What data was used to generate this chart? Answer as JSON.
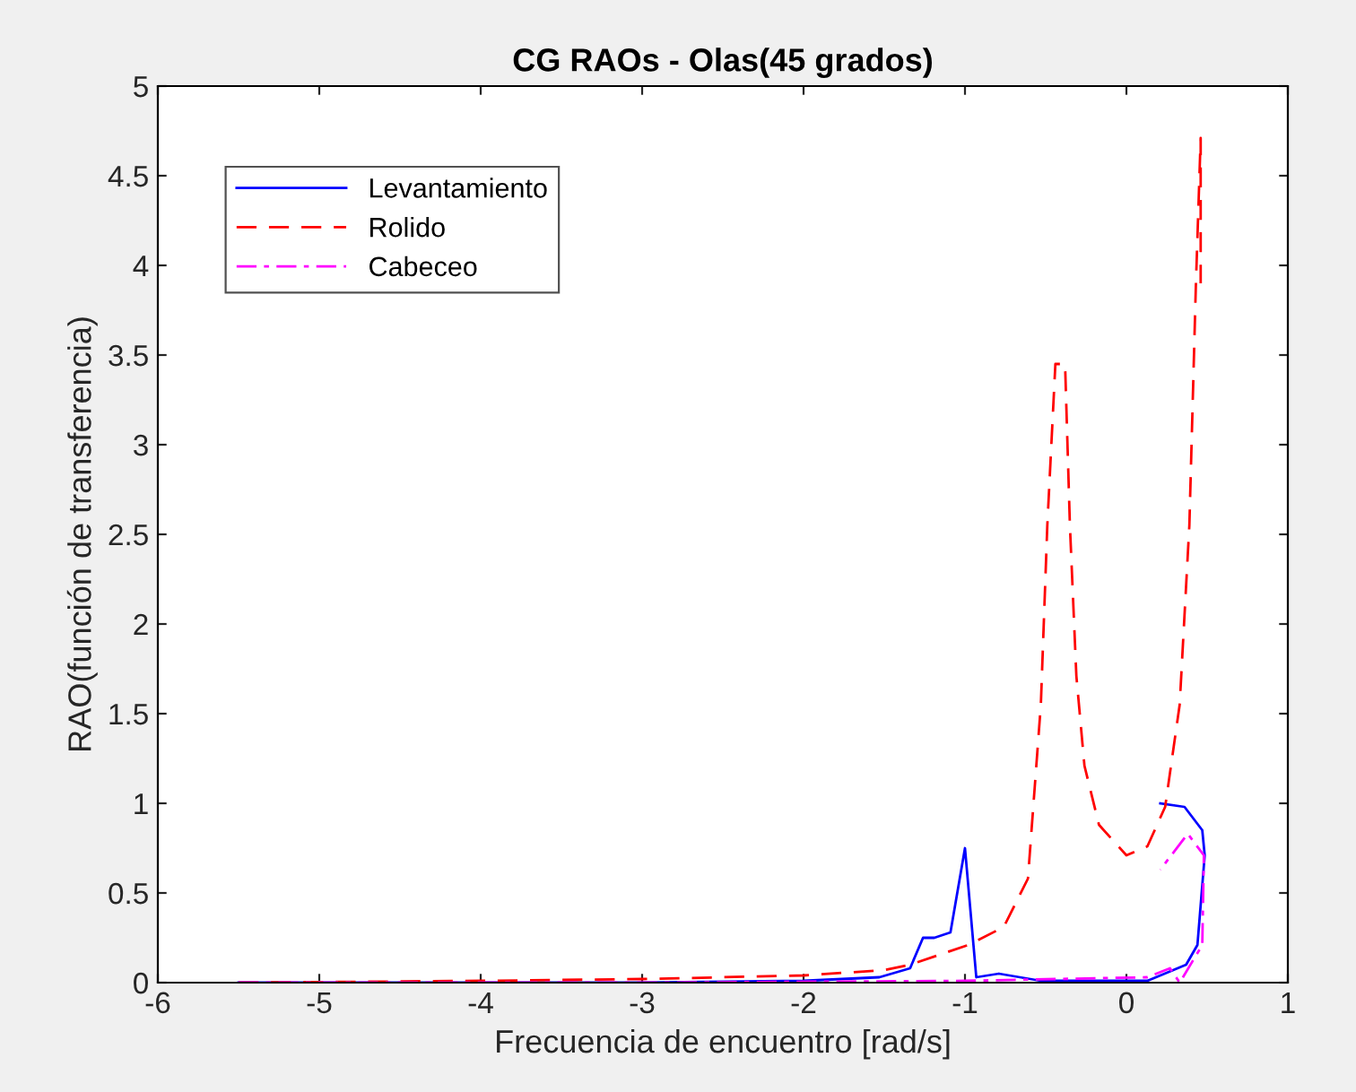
{
  "chart_data": {
    "type": "line",
    "title": "CG RAOs - Olas(45 grados)",
    "xlabel": "Frecuencia de encuentro [rad/s]",
    "ylabel": "RAO(función de transferencia)",
    "xlim": [
      -6,
      1
    ],
    "xticks": [
      -6,
      -5,
      -4,
      -3,
      -2,
      -1,
      0,
      1
    ],
    "ylim": [
      0,
      5
    ],
    "yticks": [
      0,
      0.5,
      1,
      1.5,
      2,
      2.5,
      3,
      3.5,
      4,
      4.5,
      5
    ],
    "grid": false,
    "legend": "top left",
    "series": [
      {
        "name": "Levantamiento",
        "color": "#0000ff",
        "line_style": "solid",
        "x": [
          -5.5,
          -4,
          -3,
          -2,
          -1.53,
          -1.34,
          -1.26,
          -1.19,
          -1.09,
          -1.0,
          -0.93,
          -0.79,
          -0.53,
          0.13,
          0.37,
          0.44,
          0.485,
          0.47,
          0.36,
          0.21
        ],
        "values": [
          0,
          0,
          0,
          0.01,
          0.03,
          0.08,
          0.25,
          0.25,
          0.28,
          0.75,
          0.03,
          0.05,
          0.01,
          0.01,
          0.1,
          0.21,
          0.71,
          0.85,
          0.98,
          1.0
        ]
      },
      {
        "name": "Rolido",
        "color": "#ff0000",
        "line_style": "dashed",
        "x": [
          -5.5,
          -4,
          -3,
          -2,
          -1.5,
          -1.34,
          -0.98,
          -0.76,
          -0.61,
          -0.53,
          -0.49,
          -0.44,
          -0.38,
          -0.35,
          -0.31,
          -0.26,
          -0.17,
          0.0,
          0.13,
          0.24,
          0.33,
          0.39,
          0.43,
          0.46,
          0.46
        ],
        "values": [
          0,
          0.01,
          0.02,
          0.04,
          0.07,
          0.1,
          0.21,
          0.31,
          0.58,
          1.55,
          2.55,
          3.45,
          3.45,
          2.55,
          1.71,
          1.21,
          0.88,
          0.71,
          0.76,
          0.98,
          1.55,
          2.55,
          3.88,
          4.71,
          3.9
        ]
      },
      {
        "name": "Cabeceo",
        "color": "#ff00ff",
        "line_style": "dashdot",
        "x": [
          -5.5,
          -3,
          -1,
          0.13,
          0.27,
          0.33,
          0.47,
          0.48,
          0.38,
          0.21
        ],
        "values": [
          0,
          0,
          0.01,
          0.03,
          0.08,
          0.0,
          0.21,
          0.71,
          0.83,
          0.63
        ]
      }
    ]
  }
}
